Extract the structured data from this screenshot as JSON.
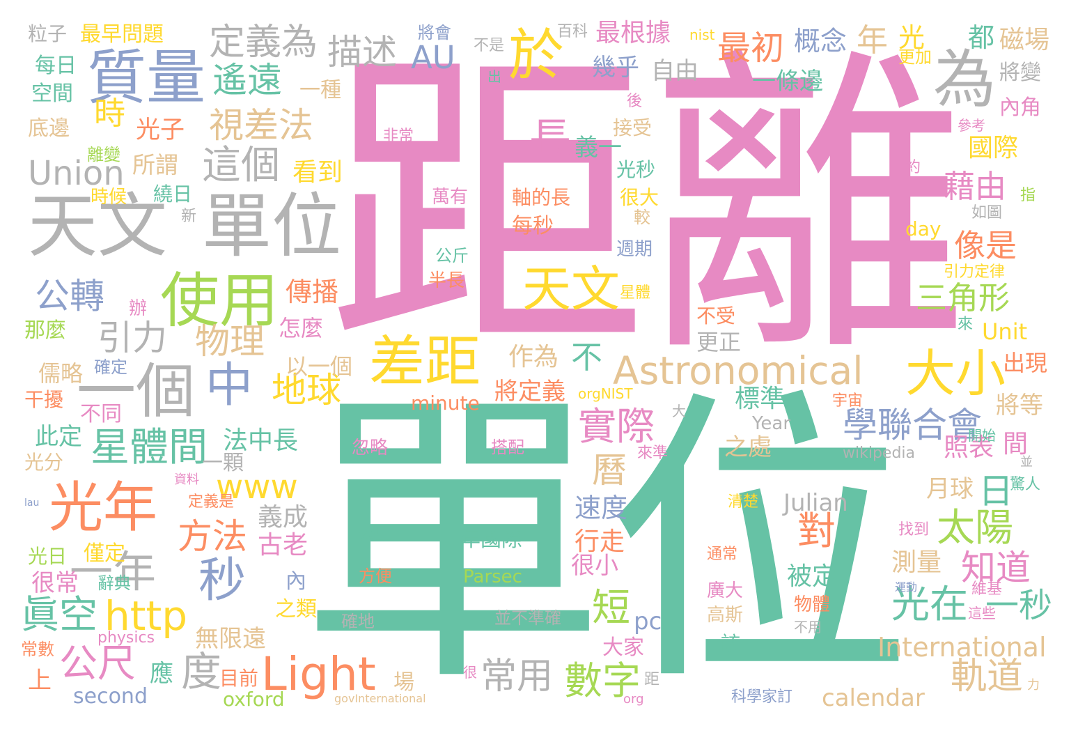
{
  "palette": {
    "pink": "#e78ac3",
    "green": "#66c2a5",
    "orange": "#fc8d62",
    "blue": "#8da0cb",
    "lime": "#a6d854",
    "yellow": "#ffd92f",
    "tan": "#e5c494",
    "gray": "#b3b3b3"
  },
  "words": [
    {
      "text": "距離",
      "color": "pink"
    },
    {
      "text": "單位",
      "color": "green"
    },
    {
      "text": "天文",
      "color": "gray"
    },
    {
      "text": "單位",
      "color": "gray"
    },
    {
      "text": "質量",
      "color": "blue"
    },
    {
      "text": "為",
      "color": "gray"
    },
    {
      "text": "使用",
      "color": "lime"
    },
    {
      "text": "於",
      "color": "yellow"
    },
    {
      "text": "一個",
      "color": "gray"
    },
    {
      "text": "光年",
      "color": "orange"
    },
    {
      "text": "差距",
      "color": "yellow"
    },
    {
      "text": "天文",
      "color": "yellow"
    },
    {
      "text": "Astronomical",
      "color": "tan"
    },
    {
      "text": "大小",
      "color": "yellow"
    },
    {
      "text": "中",
      "color": "blue"
    },
    {
      "text": "Light",
      "color": "orange"
    },
    {
      "text": "秒",
      "color": "blue"
    },
    {
      "text": "一年",
      "color": "gray"
    },
    {
      "text": "http",
      "color": "yellow"
    },
    {
      "text": "Union",
      "color": "gray"
    },
    {
      "text": "這個",
      "color": "gray"
    },
    {
      "text": "視差法",
      "color": "tan"
    },
    {
      "text": "定義為",
      "color": "gray"
    },
    {
      "text": "描述",
      "color": "gray"
    },
    {
      "text": "AU",
      "color": "blue"
    },
    {
      "text": "遙遠",
      "color": "green"
    },
    {
      "text": "最初",
      "color": "orange"
    },
    {
      "text": "年",
      "color": "tan"
    },
    {
      "text": "光",
      "color": "yellow"
    },
    {
      "text": "概念",
      "color": "blue"
    },
    {
      "text": "最根據",
      "color": "pink"
    },
    {
      "text": "幾乎",
      "color": "blue"
    },
    {
      "text": "自由",
      "color": "gray"
    },
    {
      "text": "一條邊",
      "color": "green"
    },
    {
      "text": "都",
      "color": "green"
    },
    {
      "text": "磁場",
      "color": "tan"
    },
    {
      "text": "更加",
      "color": "yellow"
    },
    {
      "text": "將變",
      "color": "gray"
    },
    {
      "text": "內角",
      "color": "pink"
    },
    {
      "text": "國際",
      "color": "yellow"
    },
    {
      "text": "藉由",
      "color": "pink"
    },
    {
      "text": "像是",
      "color": "orange"
    },
    {
      "text": "三角形",
      "color": "lime"
    },
    {
      "text": "長",
      "color": "pink"
    },
    {
      "text": "義一",
      "color": "green"
    },
    {
      "text": "時",
      "color": "yellow"
    },
    {
      "text": "光子",
      "color": "orange"
    },
    {
      "text": "所謂",
      "color": "tan"
    },
    {
      "text": "看到",
      "color": "yellow"
    },
    {
      "text": "公轉",
      "color": "blue"
    },
    {
      "text": "引力",
      "color": "gray"
    },
    {
      "text": "物理",
      "color": "tan"
    },
    {
      "text": "傳播",
      "color": "orange"
    },
    {
      "text": "地球",
      "color": "yellow"
    },
    {
      "text": "星體間",
      "color": "green"
    },
    {
      "text": "學聯合會",
      "color": "blue"
    },
    {
      "text": "實際",
      "color": "pink"
    },
    {
      "text": "方法",
      "color": "orange"
    },
    {
      "text": "太陽",
      "color": "lime"
    },
    {
      "text": "知道",
      "color": "pink"
    },
    {
      "text": "對",
      "color": "orange"
    },
    {
      "text": "日",
      "color": "green"
    },
    {
      "text": "光在",
      "color": "green"
    },
    {
      "text": "一秒",
      "color": "green"
    },
    {
      "text": "軌道",
      "color": "tan"
    },
    {
      "text": "數字",
      "color": "lime"
    },
    {
      "text": "公尺",
      "color": "pink"
    },
    {
      "text": "眞空",
      "color": "green"
    },
    {
      "text": "度",
      "color": "gray"
    },
    {
      "text": "常用",
      "color": "gray"
    },
    {
      "text": "www",
      "color": "yellow"
    },
    {
      "text": "International",
      "color": "tan"
    },
    {
      "text": "calendar",
      "color": "tan"
    },
    {
      "text": "Julian",
      "color": "gray"
    },
    {
      "text": "minute",
      "color": "orange"
    },
    {
      "text": "Parsec",
      "color": "lime"
    },
    {
      "text": "pc",
      "color": "blue"
    },
    {
      "text": "second",
      "color": "blue"
    },
    {
      "text": "oxford",
      "color": "lime"
    },
    {
      "text": "day",
      "color": "yellow"
    },
    {
      "text": "Unit",
      "color": "yellow"
    },
    {
      "text": "Year",
      "color": "gray"
    },
    {
      "text": "wikipedia",
      "color": "gray"
    },
    {
      "text": "physics",
      "color": "pink"
    },
    {
      "text": "orgNIST",
      "color": "yellow"
    },
    {
      "text": "nist",
      "color": "yellow"
    },
    {
      "text": "govInternational",
      "color": "tan"
    },
    {
      "text": "org",
      "color": "pink"
    },
    {
      "text": "短",
      "color": "lime"
    },
    {
      "text": "曆",
      "color": "tan"
    },
    {
      "text": "速度",
      "color": "blue"
    },
    {
      "text": "行走",
      "color": "orange"
    },
    {
      "text": "很小",
      "color": "pink"
    },
    {
      "text": "被定",
      "color": "green"
    },
    {
      "text": "測量",
      "color": "tan"
    },
    {
      "text": "月球",
      "color": "tan"
    },
    {
      "text": "照表",
      "color": "pink"
    },
    {
      "text": "間",
      "color": "pink"
    },
    {
      "text": "將等",
      "color": "tan"
    },
    {
      "text": "出現",
      "color": "orange"
    },
    {
      "text": "標準",
      "color": "green"
    },
    {
      "text": "之處",
      "color": "tan"
    },
    {
      "text": "作為",
      "color": "tan"
    },
    {
      "text": "不",
      "color": "green"
    },
    {
      "text": "將定義",
      "color": "orange"
    },
    {
      "text": "以一個",
      "color": "tan"
    },
    {
      "text": "怎麼",
      "color": "pink"
    },
    {
      "text": "更正",
      "color": "gray"
    },
    {
      "text": "不受",
      "color": "orange"
    },
    {
      "text": "法中長",
      "color": "green"
    },
    {
      "text": "一顆",
      "color": "gray"
    },
    {
      "text": "義成",
      "color": "gray"
    },
    {
      "text": "古老",
      "color": "pink"
    },
    {
      "text": "內",
      "color": "blue"
    },
    {
      "text": "之類",
      "color": "yellow"
    },
    {
      "text": "無限遠",
      "color": "tan"
    },
    {
      "text": "目前",
      "color": "orange"
    },
    {
      "text": "場",
      "color": "tan"
    },
    {
      "text": "應",
      "color": "green"
    },
    {
      "text": "上",
      "color": "orange"
    },
    {
      "text": "常數",
      "color": "orange"
    },
    {
      "text": "很常",
      "color": "pink"
    },
    {
      "text": "辭典",
      "color": "green"
    },
    {
      "text": "光日",
      "color": "lime"
    },
    {
      "text": "僅定",
      "color": "yellow"
    },
    {
      "text": "光分",
      "color": "tan"
    },
    {
      "text": "此定",
      "color": "green"
    },
    {
      "text": "不同",
      "color": "pink"
    },
    {
      "text": "干擾",
      "color": "orange"
    },
    {
      "text": "儒略",
      "color": "tan"
    },
    {
      "text": "確定",
      "color": "blue"
    },
    {
      "text": "那麼",
      "color": "lime"
    },
    {
      "text": "辦",
      "color": "pink"
    },
    {
      "text": "時候",
      "color": "yellow"
    },
    {
      "text": "繞日",
      "color": "green"
    },
    {
      "text": "新",
      "color": "gray"
    },
    {
      "text": "離變",
      "color": "lime"
    },
    {
      "text": "底邊",
      "color": "tan"
    },
    {
      "text": "空間",
      "color": "green"
    },
    {
      "text": "每日",
      "color": "green"
    },
    {
      "text": "粒子",
      "color": "gray"
    },
    {
      "text": "最早問題",
      "color": "yellow"
    },
    {
      "text": "一種",
      "color": "tan"
    },
    {
      "text": "將會",
      "color": "blue"
    },
    {
      "text": "不是",
      "color": "gray"
    },
    {
      "text": "百科",
      "color": "gray"
    },
    {
      "text": "出",
      "color": "green"
    },
    {
      "text": "後",
      "color": "pink"
    },
    {
      "text": "非常",
      "color": "pink"
    },
    {
      "text": "接受",
      "color": "tan"
    },
    {
      "text": "光秒",
      "color": "green"
    },
    {
      "text": "萬有",
      "color": "pink"
    },
    {
      "text": "軸的長",
      "color": "orange"
    },
    {
      "text": "很大",
      "color": "yellow"
    },
    {
      "text": "每秒",
      "color": "orange"
    },
    {
      "text": "較",
      "color": "tan"
    },
    {
      "text": "週期",
      "color": "blue"
    },
    {
      "text": "公斤",
      "color": "green"
    },
    {
      "text": "半長",
      "color": "orange"
    },
    {
      "text": "星體",
      "color": "yellow"
    },
    {
      "text": "約",
      "color": "pink"
    },
    {
      "text": "指",
      "color": "lime"
    },
    {
      "text": "如圖",
      "color": "gray"
    },
    {
      "text": "參考",
      "color": "pink"
    },
    {
      "text": "引力定律",
      "color": "yellow"
    },
    {
      "text": "來",
      "color": "green"
    },
    {
      "text": "宇宙",
      "color": "orange"
    },
    {
      "text": "開始",
      "color": "green"
    },
    {
      "text": "大",
      "color": "gray"
    },
    {
      "text": "來準",
      "color": "pink"
    },
    {
      "text": "並",
      "color": "gray"
    },
    {
      "text": "驚人",
      "color": "green"
    },
    {
      "text": "資料",
      "color": "pink"
    },
    {
      "text": "定義是",
      "color": "orange"
    },
    {
      "text": "清楚",
      "color": "yellow"
    },
    {
      "text": "找到",
      "color": "pink"
    },
    {
      "text": "通常",
      "color": "orange"
    },
    {
      "text": "運動",
      "color": "blue"
    },
    {
      "text": "維基",
      "color": "pink"
    },
    {
      "text": "廣大",
      "color": "pink"
    },
    {
      "text": "高斯",
      "color": "tan"
    },
    {
      "text": "物體",
      "color": "orange"
    },
    {
      "text": "這些",
      "color": "pink"
    },
    {
      "text": "該",
      "color": "green"
    },
    {
      "text": "不用",
      "color": "gray"
    },
    {
      "text": "大家",
      "color": "pink"
    },
    {
      "text": "科學家訂",
      "color": "blue"
    },
    {
      "text": "力",
      "color": "tan"
    },
    {
      "text": "距",
      "color": "gray"
    },
    {
      "text": "很",
      "color": "pink"
    },
    {
      "text": "確地",
      "color": "gray"
    },
    {
      "text": "並不準確",
      "color": "gray"
    },
    {
      "text": "忽略",
      "color": "pink"
    },
    {
      "text": "搭配",
      "color": "pink"
    },
    {
      "text": "公里",
      "color": "green"
    },
    {
      "text": "年國際",
      "color": "green"
    },
    {
      "text": "方便",
      "color": "orange"
    },
    {
      "text": "lau",
      "color": "blue"
    }
  ]
}
